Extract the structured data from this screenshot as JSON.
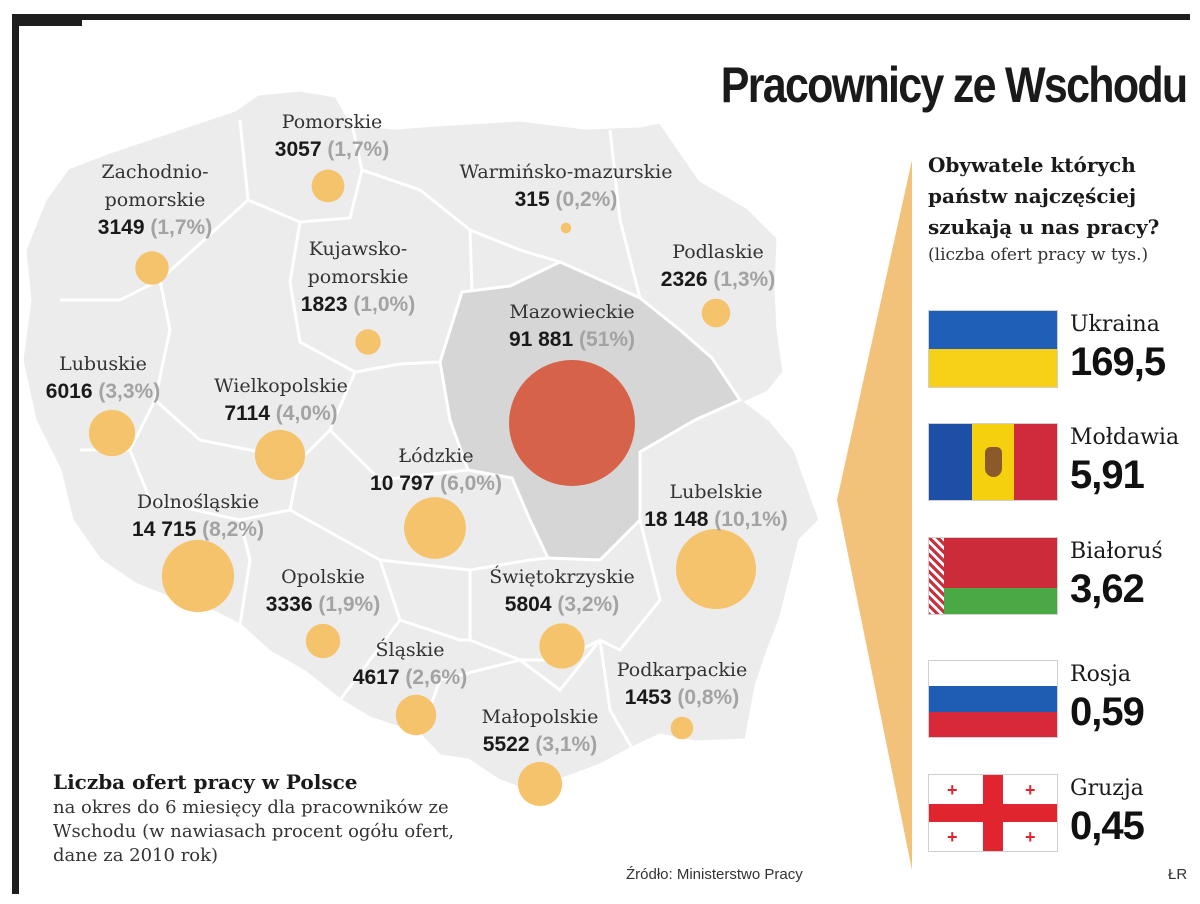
{
  "title": "Pracownicy ze Wschodu",
  "colors": {
    "map_fill": "#ececec",
    "mazowieckie_fill": "#d6d6d6",
    "bubble": "#f5c36b",
    "bubble_main": "#d6624a",
    "arrow": "#f3c27a"
  },
  "regions": [
    {
      "name": [
        "Pomorskie"
      ],
      "value": "3057",
      "pct": "(1,7%)",
      "offers": 3057
    },
    {
      "name": [
        "Zachodnio-",
        "pomorskie"
      ],
      "value": "3149",
      "pct": "(1,7%)",
      "offers": 3149
    },
    {
      "name": [
        "Warmińsko-mazurskie"
      ],
      "value": "315",
      "pct": "(0,2%)",
      "offers": 315
    },
    {
      "name": [
        "Kujawsko-",
        "pomorskie"
      ],
      "value": "1823",
      "pct": "(1,0%)",
      "offers": 1823
    },
    {
      "name": [
        "Podlaskie"
      ],
      "value": "2326",
      "pct": "(1,3%)",
      "offers": 2326
    },
    {
      "name": [
        "Mazowieckie"
      ],
      "value": "91 881",
      "pct": "(51%)",
      "offers": 91881
    },
    {
      "name": [
        "Lubuskie"
      ],
      "value": "6016",
      "pct": "(3,3%)",
      "offers": 6016
    },
    {
      "name": [
        "Wielkopolskie"
      ],
      "value": "7114",
      "pct": "(4,0%)",
      "offers": 7114
    },
    {
      "name": [
        "Łódzkie"
      ],
      "value": "10 797",
      "pct": "(6,0%)",
      "offers": 10797
    },
    {
      "name": [
        "Lubelskie"
      ],
      "value": "18 148",
      "pct": "(10,1%)",
      "offers": 18148
    },
    {
      "name": [
        "Dolnośląskie"
      ],
      "value": "14 715",
      "pct": "(8,2%)",
      "offers": 14715
    },
    {
      "name": [
        "Opolskie"
      ],
      "value": "3336",
      "pct": "(1,9%)",
      "offers": 3336
    },
    {
      "name": [
        "Świętokrzyskie"
      ],
      "value": "5804",
      "pct": "(3,2%)",
      "offers": 5804
    },
    {
      "name": [
        "Śląskie"
      ],
      "value": "4617",
      "pct": "(2,6%)",
      "offers": 4617
    },
    {
      "name": [
        "Podkarpackie"
      ],
      "value": "1453",
      "pct": "(0,8%)",
      "offers": 1453
    },
    {
      "name": [
        "Małopolskie"
      ],
      "value": "5522",
      "pct": "(3,1%)",
      "offers": 5522
    }
  ],
  "legend": {
    "title": "Liczba ofert pracy w Polsce",
    "description": "na okres do 6 miesięcy dla pracowników ze Wschodu (w nawiasach procent ogółu ofert, dane za 2010 rok)"
  },
  "source": "Źródło: Ministerstwo Pracy",
  "credit": "ŁR",
  "panel": {
    "title": "Obywatele których państw najczęściej szukają u nas pracy?",
    "subtitle": "(liczba ofert pracy w tys.)",
    "countries": [
      {
        "name": "Ukraina",
        "value": "169,5",
        "flag": "ukraine-flag"
      },
      {
        "name": "Mołdawia",
        "value": "5,91",
        "flag": "moldova-flag"
      },
      {
        "name": "Białoruś",
        "value": "3,62",
        "flag": "belarus-flag"
      },
      {
        "name": "Rosja",
        "value": "0,59",
        "flag": "russia-flag"
      },
      {
        "name": "Gruzja",
        "value": "0,45",
        "flag": "georgia-flag"
      }
    ]
  }
}
